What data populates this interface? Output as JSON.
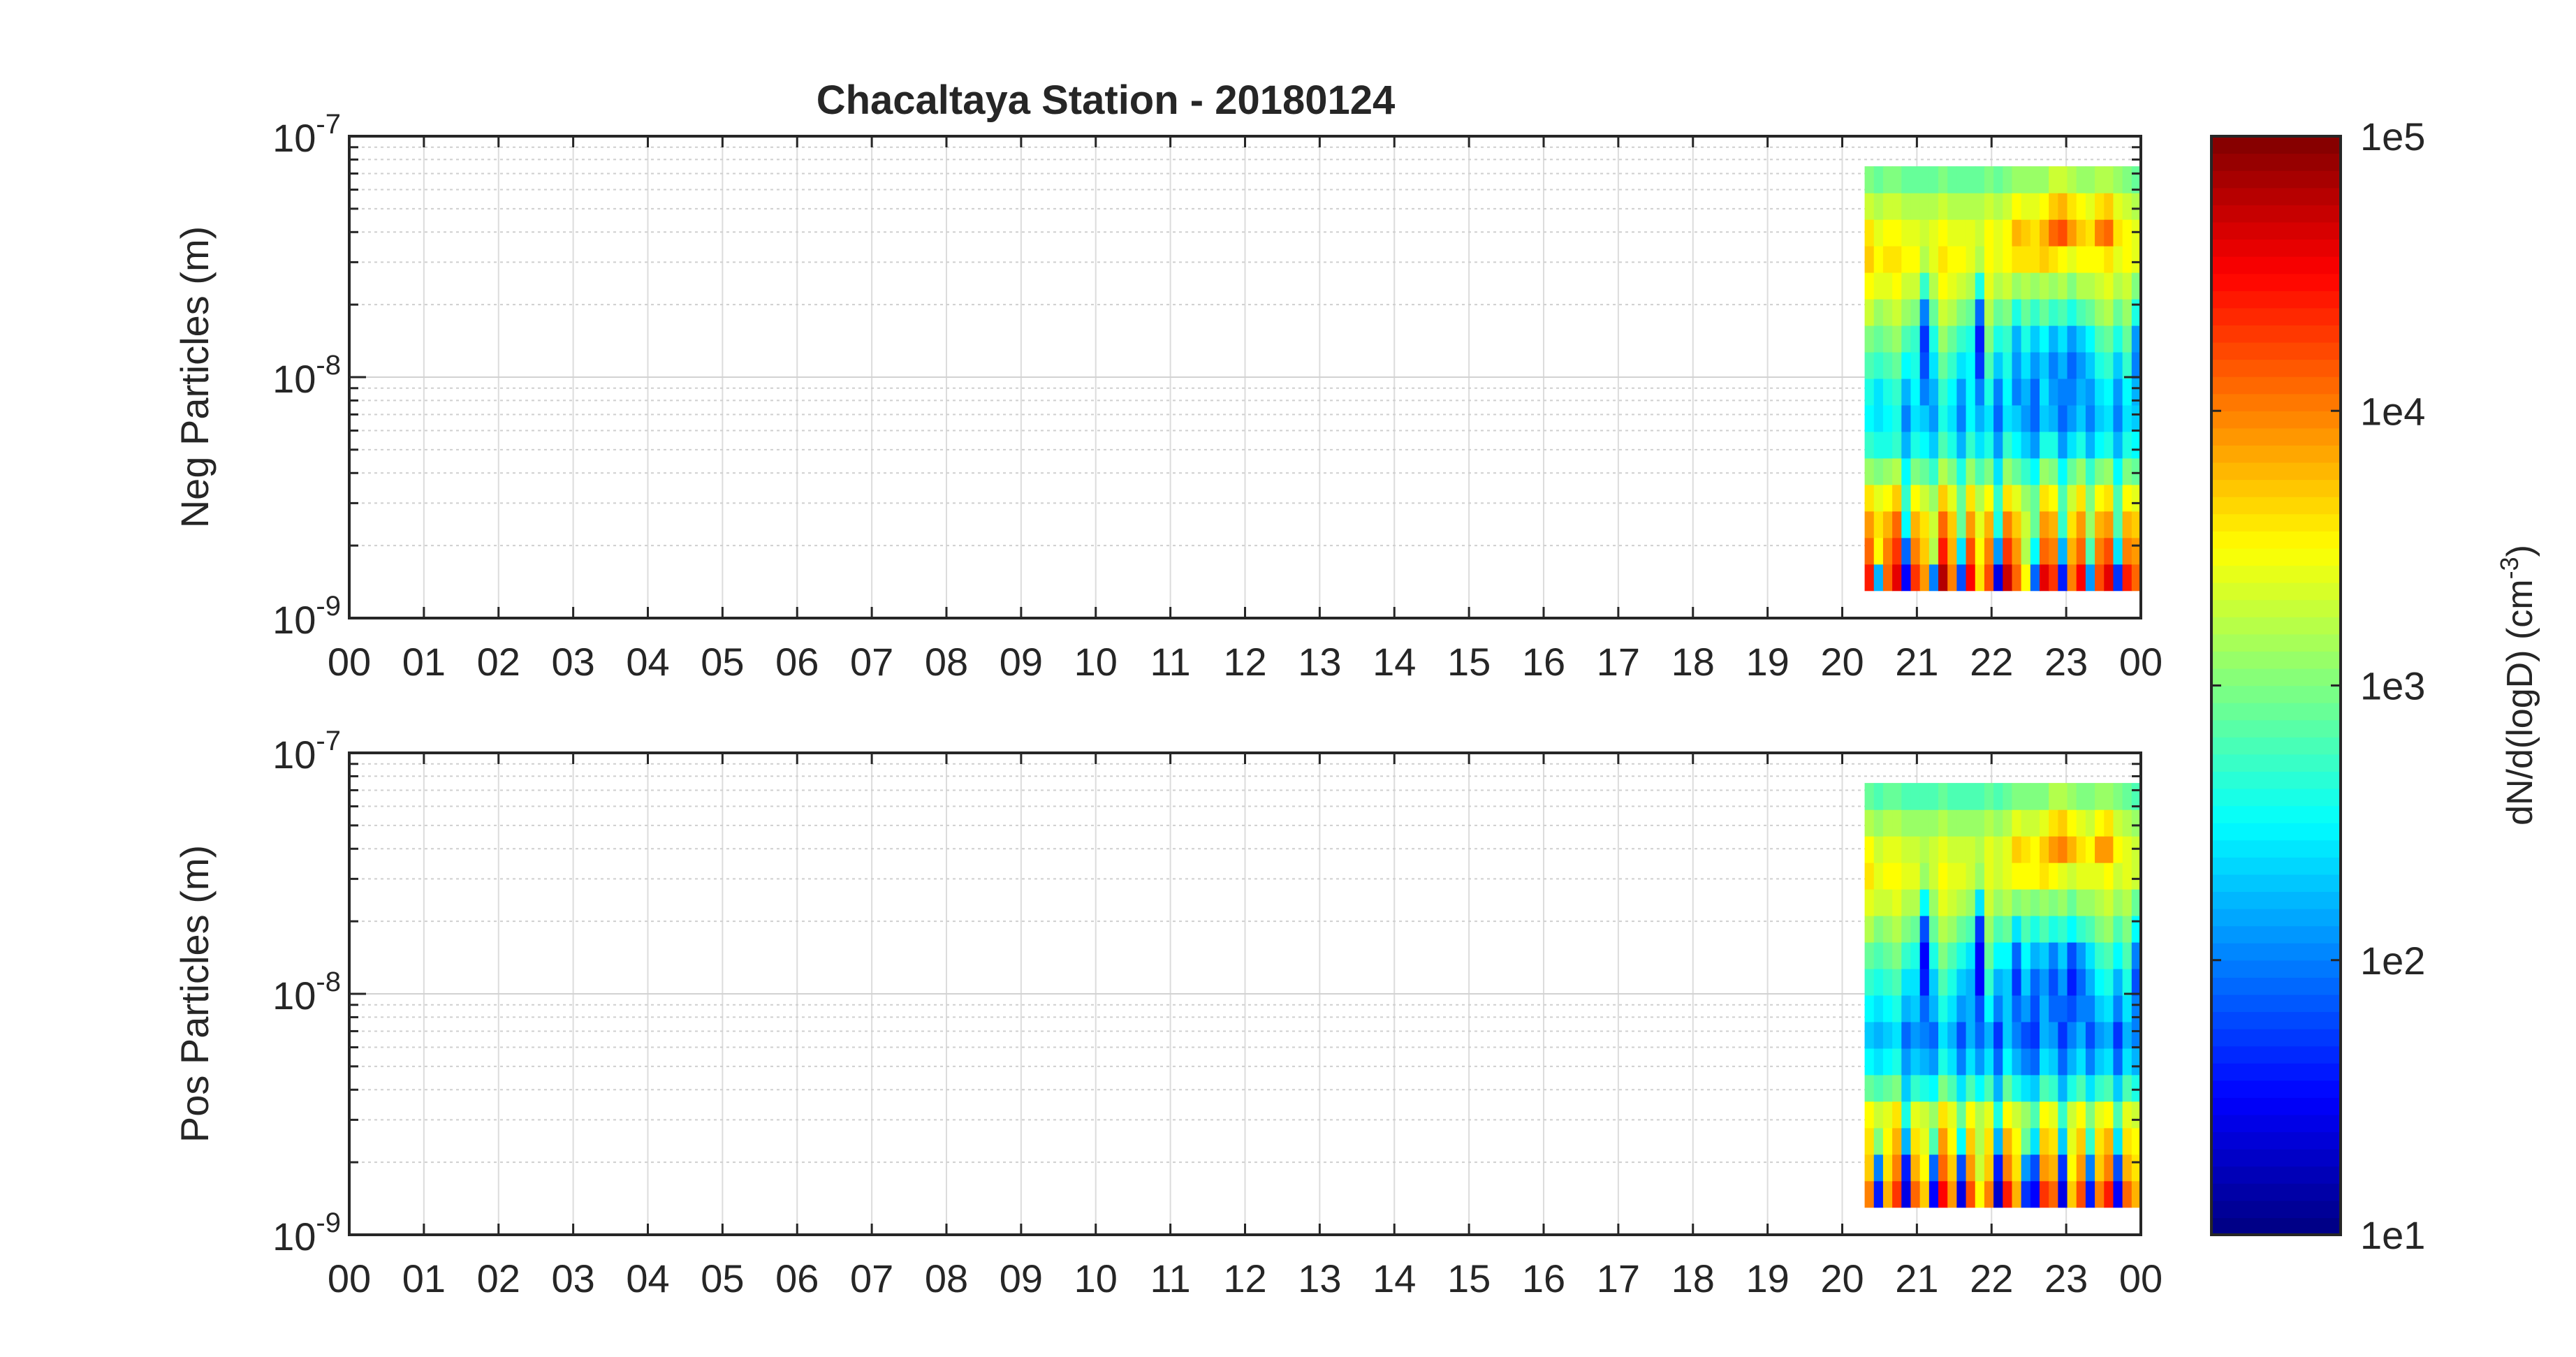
{
  "chart_data": [
    {
      "type": "heatmap",
      "title": "Chacaltaya Station - 20180124",
      "ylabel": "Neg Particles (m)",
      "xlabel": "",
      "x_tick_labels": [
        "00",
        "01",
        "02",
        "03",
        "04",
        "05",
        "06",
        "07",
        "08",
        "09",
        "10",
        "11",
        "12",
        "13",
        "14",
        "15",
        "16",
        "17",
        "18",
        "19",
        "20",
        "21",
        "22",
        "23",
        "00"
      ],
      "xlim_hours": [
        0,
        24
      ],
      "y_scale": "log",
      "ylim_m": [
        1e-09,
        1e-07
      ],
      "y_tick_labels": [
        {
          "base": "10",
          "exp": "-7"
        },
        {
          "base": "10",
          "exp": "-8"
        },
        {
          "base": "10",
          "exp": "-9"
        }
      ],
      "grid": true,
      "data_extent": {
        "x_hours": [
          20.3,
          24.0
        ],
        "y_m": [
          1.3e-09,
          7.5e-08
        ]
      },
      "z_log10_rows_small_to_large": [
        [
          4.4,
          2.2,
          4.1,
          4.6,
          1.5,
          4.3,
          3.9,
          2.0,
          4.8,
          4.0,
          1.8,
          4.5,
          3.6,
          4.2,
          1.4,
          4.7,
          4.1,
          3.5,
          1.9,
          4.6,
          4.3,
          1.6,
          4.0,
          4.5,
          2.1,
          4.2,
          4.6,
          1.7,
          4.4,
          4.1
        ],
        [
          4.1,
          3.5,
          4.0,
          4.3,
          1.9,
          4.0,
          3.7,
          3.2,
          4.4,
          3.8,
          2.4,
          4.2,
          3.5,
          4.0,
          2.1,
          4.3,
          3.9,
          3.2,
          2.5,
          4.1,
          4.0,
          2.2,
          3.8,
          4.1,
          2.8,
          4.0,
          4.2,
          2.4,
          4.0,
          3.9
        ],
        [
          3.9,
          3.6,
          3.8,
          4.1,
          2.5,
          3.8,
          3.6,
          3.3,
          4.1,
          3.7,
          2.9,
          3.9,
          3.4,
          3.8,
          2.6,
          4.0,
          3.7,
          3.3,
          2.9,
          3.9,
          3.8,
          2.7,
          3.6,
          3.9,
          3.1,
          3.8,
          3.9,
          2.8,
          3.8,
          3.7
        ],
        [
          3.6,
          3.4,
          3.5,
          3.7,
          2.7,
          3.5,
          3.3,
          3.1,
          3.7,
          3.4,
          2.9,
          3.6,
          3.2,
          3.5,
          2.7,
          3.6,
          3.4,
          3.1,
          2.9,
          3.6,
          3.5,
          2.8,
          3.3,
          3.6,
          3.0,
          3.5,
          3.6,
          2.8,
          3.5,
          3.4
        ],
        [
          3.1,
          3.0,
          3.1,
          3.2,
          2.5,
          3.0,
          2.9,
          2.7,
          3.2,
          3.0,
          2.6,
          3.1,
          2.8,
          3.0,
          2.4,
          3.1,
          2.9,
          2.7,
          2.5,
          3.1,
          3.0,
          2.5,
          2.9,
          3.1,
          2.7,
          3.0,
          3.1,
          2.5,
          3.0,
          2.9
        ],
        [
          2.7,
          2.6,
          2.6,
          2.7,
          2.2,
          2.6,
          2.5,
          2.3,
          2.8,
          2.6,
          2.2,
          2.7,
          2.4,
          2.6,
          2.1,
          2.7,
          2.5,
          2.3,
          2.1,
          2.6,
          2.6,
          2.1,
          2.4,
          2.6,
          2.2,
          2.5,
          2.6,
          2.2,
          2.6,
          2.5
        ],
        [
          2.5,
          2.4,
          2.5,
          2.6,
          2.0,
          2.4,
          2.3,
          2.1,
          2.6,
          2.4,
          2.0,
          2.5,
          2.2,
          2.4,
          1.9,
          2.4,
          2.3,
          2.1,
          1.9,
          2.3,
          2.2,
          1.9,
          2.1,
          2.3,
          2.0,
          2.3,
          2.4,
          2.0,
          2.4,
          2.3
        ],
        [
          2.6,
          2.4,
          2.6,
          2.7,
          2.2,
          2.5,
          2.0,
          2.2,
          2.7,
          2.5,
          2.1,
          2.5,
          2.0,
          2.6,
          2.0,
          2.5,
          2.0,
          2.2,
          1.9,
          2.4,
          2.1,
          2.0,
          2.0,
          2.2,
          2.1,
          2.4,
          2.5,
          2.1,
          2.5,
          2.2
        ],
        [
          2.8,
          2.7,
          2.8,
          2.9,
          2.5,
          2.6,
          1.8,
          2.4,
          2.9,
          2.7,
          2.4,
          2.5,
          1.7,
          2.8,
          2.3,
          2.6,
          2.1,
          2.4,
          2.1,
          2.3,
          2.0,
          2.2,
          1.9,
          2.1,
          2.3,
          2.6,
          2.7,
          2.3,
          2.7,
          2.0
        ],
        [
          3.0,
          2.9,
          3.0,
          3.1,
          2.8,
          2.7,
          1.7,
          2.6,
          3.1,
          2.9,
          2.7,
          2.6,
          1.6,
          3.0,
          2.6,
          2.7,
          2.2,
          2.6,
          2.3,
          2.5,
          2.2,
          2.4,
          2.1,
          2.3,
          2.5,
          2.8,
          2.9,
          2.6,
          2.9,
          2.1
        ],
        [
          3.3,
          3.1,
          3.2,
          3.3,
          3.1,
          3.0,
          2.0,
          2.9,
          3.3,
          3.2,
          3.0,
          2.9,
          1.9,
          3.2,
          2.9,
          3.0,
          2.6,
          2.9,
          2.7,
          2.9,
          2.7,
          2.8,
          2.6,
          2.8,
          2.9,
          3.1,
          3.2,
          2.9,
          3.1,
          2.6
        ],
        [
          3.5,
          3.4,
          3.4,
          3.5,
          3.3,
          3.3,
          2.7,
          3.2,
          3.5,
          3.4,
          3.3,
          3.2,
          2.6,
          3.4,
          3.2,
          3.3,
          3.1,
          3.2,
          3.1,
          3.2,
          3.1,
          3.2,
          3.0,
          3.2,
          3.2,
          3.3,
          3.4,
          3.2,
          3.3,
          3.0
        ],
        [
          3.7,
          3.5,
          3.6,
          3.6,
          3.5,
          3.5,
          3.2,
          3.4,
          3.6,
          3.5,
          3.5,
          3.4,
          3.2,
          3.5,
          3.4,
          3.5,
          3.6,
          3.6,
          3.6,
          3.7,
          3.6,
          3.5,
          3.4,
          3.5,
          3.5,
          3.5,
          3.6,
          3.4,
          3.5,
          3.4
        ],
        [
          3.6,
          3.4,
          3.5,
          3.5,
          3.4,
          3.4,
          3.3,
          3.4,
          3.5,
          3.4,
          3.4,
          3.4,
          3.3,
          3.5,
          3.4,
          3.5,
          3.8,
          3.7,
          3.6,
          3.8,
          4.1,
          4.2,
          3.9,
          3.7,
          3.6,
          4.0,
          4.1,
          3.6,
          3.5,
          3.4
        ],
        [
          3.3,
          3.2,
          3.3,
          3.3,
          3.2,
          3.2,
          3.2,
          3.2,
          3.3,
          3.2,
          3.2,
          3.2,
          3.2,
          3.3,
          3.2,
          3.3,
          3.5,
          3.4,
          3.4,
          3.5,
          3.7,
          3.8,
          3.6,
          3.5,
          3.4,
          3.6,
          3.7,
          3.4,
          3.3,
          3.2
        ],
        [
          3.0,
          2.9,
          3.0,
          3.0,
          2.9,
          2.9,
          2.9,
          2.9,
          3.0,
          2.9,
          2.9,
          2.9,
          2.9,
          3.0,
          2.9,
          3.0,
          3.1,
          3.1,
          3.1,
          3.1,
          3.3,
          3.3,
          3.2,
          3.1,
          3.1,
          3.2,
          3.2,
          3.1,
          3.0,
          2.9
        ]
      ]
    },
    {
      "type": "heatmap",
      "ylabel": "Pos Particles (m)",
      "xlabel": "",
      "x_tick_labels": [
        "00",
        "01",
        "02",
        "03",
        "04",
        "05",
        "06",
        "07",
        "08",
        "09",
        "10",
        "11",
        "12",
        "13",
        "14",
        "15",
        "16",
        "17",
        "18",
        "19",
        "20",
        "21",
        "22",
        "23",
        "00"
      ],
      "xlim_hours": [
        0,
        24
      ],
      "y_scale": "log",
      "ylim_m": [
        1e-09,
        1e-07
      ],
      "y_tick_labels": [
        {
          "base": "10",
          "exp": "-7"
        },
        {
          "base": "10",
          "exp": "-8"
        },
        {
          "base": "10",
          "exp": "-9"
        }
      ],
      "grid": true,
      "data_extent": {
        "x_hours": [
          20.3,
          24.0
        ],
        "y_m": [
          1.3e-09,
          7.5e-08
        ]
      },
      "z_log10_rows_small_to_large": [
        [
          4.0,
          1.6,
          3.8,
          4.3,
          1.4,
          4.1,
          3.7,
          1.5,
          4.5,
          3.9,
          1.4,
          4.2,
          3.5,
          4.0,
          1.3,
          4.4,
          3.8,
          1.7,
          1.5,
          4.3,
          4.1,
          1.4,
          3.7,
          4.2,
          1.6,
          4.0,
          4.4,
          1.5,
          4.1,
          3.8
        ],
        [
          3.7,
          2.0,
          3.6,
          4.0,
          1.6,
          3.8,
          3.5,
          1.9,
          4.1,
          3.7,
          1.8,
          3.9,
          3.3,
          3.7,
          1.6,
          4.0,
          3.6,
          2.1,
          1.8,
          3.9,
          3.8,
          1.7,
          3.5,
          3.9,
          2.0,
          3.7,
          4.0,
          1.8,
          3.8,
          3.6
        ],
        [
          3.6,
          3.0,
          3.5,
          3.8,
          2.2,
          3.6,
          3.4,
          2.8,
          3.9,
          3.5,
          2.5,
          3.7,
          3.2,
          3.6,
          2.2,
          3.8,
          3.5,
          2.9,
          2.4,
          3.7,
          3.6,
          2.3,
          3.4,
          3.7,
          2.7,
          3.6,
          3.8,
          2.4,
          3.6,
          3.5
        ],
        [
          3.5,
          3.3,
          3.4,
          3.6,
          2.6,
          3.4,
          3.3,
          3.1,
          3.6,
          3.4,
          2.9,
          3.5,
          3.2,
          3.4,
          2.6,
          3.5,
          3.3,
          3.1,
          2.8,
          3.5,
          3.4,
          2.7,
          3.3,
          3.5,
          3.0,
          3.4,
          3.5,
          2.8,
          3.4,
          3.3
        ],
        [
          2.9,
          2.8,
          2.9,
          3.0,
          2.3,
          2.7,
          2.6,
          2.5,
          3.0,
          2.8,
          2.4,
          2.8,
          2.5,
          2.8,
          2.2,
          2.9,
          2.6,
          2.4,
          2.3,
          2.8,
          2.7,
          2.2,
          2.6,
          2.8,
          2.4,
          2.7,
          2.8,
          2.3,
          2.8,
          2.6
        ],
        [
          2.5,
          2.4,
          2.5,
          2.6,
          2.1,
          2.3,
          2.2,
          2.1,
          2.6,
          2.4,
          2.0,
          2.4,
          2.1,
          2.4,
          1.9,
          2.5,
          2.2,
          2.0,
          1.9,
          2.4,
          2.3,
          1.9,
          2.2,
          2.4,
          2.0,
          2.3,
          2.4,
          1.9,
          2.4,
          2.2
        ],
        [
          2.3,
          2.2,
          2.3,
          2.4,
          1.9,
          2.1,
          2.0,
          1.9,
          2.4,
          2.2,
          1.8,
          2.2,
          1.9,
          2.2,
          1.7,
          2.3,
          2.0,
          1.8,
          1.7,
          2.2,
          2.1,
          1.7,
          2.0,
          2.2,
          1.8,
          2.1,
          2.2,
          1.7,
          2.2,
          2.0
        ],
        [
          2.5,
          2.4,
          2.5,
          2.6,
          2.2,
          2.3,
          1.9,
          2.2,
          2.6,
          2.4,
          2.1,
          2.2,
          1.8,
          2.5,
          2.0,
          2.3,
          1.9,
          2.1,
          1.8,
          2.2,
          1.9,
          1.9,
          1.8,
          2.0,
          2.0,
          2.3,
          2.4,
          2.0,
          2.4,
          2.0
        ],
        [
          2.7,
          2.6,
          2.7,
          2.8,
          2.4,
          2.4,
          1.6,
          2.3,
          2.8,
          2.6,
          2.3,
          2.2,
          1.5,
          2.7,
          2.2,
          2.3,
          1.7,
          2.3,
          1.9,
          2.1,
          1.8,
          2.1,
          1.6,
          1.9,
          2.2,
          2.5,
          2.6,
          2.2,
          2.6,
          1.8
        ],
        [
          2.9,
          2.8,
          2.9,
          3.0,
          2.7,
          2.6,
          1.5,
          2.6,
          3.0,
          2.8,
          2.6,
          2.4,
          1.5,
          2.9,
          2.5,
          2.5,
          1.9,
          2.5,
          2.2,
          2.3,
          2.0,
          2.3,
          1.8,
          2.1,
          2.4,
          2.7,
          2.8,
          2.5,
          2.8,
          2.0
        ],
        [
          3.2,
          3.0,
          3.1,
          3.2,
          3.0,
          2.9,
          1.8,
          2.9,
          3.2,
          3.1,
          2.9,
          2.8,
          1.7,
          3.1,
          2.8,
          2.9,
          2.4,
          2.8,
          2.6,
          2.8,
          2.6,
          2.7,
          2.5,
          2.7,
          2.8,
          3.0,
          3.1,
          2.8,
          3.0,
          2.5
        ],
        [
          3.4,
          3.3,
          3.3,
          3.4,
          3.2,
          3.2,
          2.5,
          3.1,
          3.4,
          3.3,
          3.2,
          3.1,
          2.4,
          3.3,
          3.1,
          3.2,
          3.0,
          3.1,
          3.0,
          3.1,
          3.0,
          3.1,
          2.9,
          3.1,
          3.1,
          3.2,
          3.3,
          3.1,
          3.2,
          2.9
        ],
        [
          3.6,
          3.4,
          3.5,
          3.5,
          3.4,
          3.4,
          3.1,
          3.3,
          3.5,
          3.4,
          3.4,
          3.3,
          3.1,
          3.4,
          3.3,
          3.4,
          3.5,
          3.5,
          3.5,
          3.6,
          3.5,
          3.4,
          3.3,
          3.4,
          3.4,
          3.4,
          3.5,
          3.3,
          3.4,
          3.3
        ],
        [
          3.5,
          3.3,
          3.4,
          3.4,
          3.3,
          3.3,
          3.2,
          3.3,
          3.4,
          3.3,
          3.3,
          3.3,
          3.2,
          3.4,
          3.3,
          3.4,
          3.7,
          3.6,
          3.5,
          3.7,
          3.9,
          4.0,
          3.8,
          3.6,
          3.5,
          3.9,
          3.9,
          3.5,
          3.4,
          3.3
        ],
        [
          3.2,
          3.1,
          3.2,
          3.2,
          3.1,
          3.1,
          3.1,
          3.1,
          3.2,
          3.1,
          3.1,
          3.1,
          3.1,
          3.2,
          3.1,
          3.2,
          3.4,
          3.3,
          3.3,
          3.4,
          3.6,
          3.7,
          3.5,
          3.4,
          3.3,
          3.5,
          3.6,
          3.3,
          3.2,
          3.1
        ],
        [
          2.9,
          2.8,
          2.9,
          2.9,
          2.8,
          2.8,
          2.8,
          2.8,
          2.9,
          2.8,
          2.8,
          2.8,
          2.8,
          2.9,
          2.8,
          2.9,
          3.0,
          3.0,
          3.0,
          3.0,
          3.2,
          3.2,
          3.1,
          3.0,
          3.0,
          3.1,
          3.1,
          3.0,
          2.9,
          2.8
        ]
      ]
    }
  ],
  "colorbar": {
    "colormap": "jet",
    "scale": "log",
    "range": [
      10.0,
      100000.0
    ],
    "tick_labels": [
      "1e5",
      "1e4",
      "1e3",
      "1e2",
      "1e1"
    ],
    "label": "dN/d(logD) (cm",
    "label_sup": "-3",
    "label_suffix": ")"
  }
}
